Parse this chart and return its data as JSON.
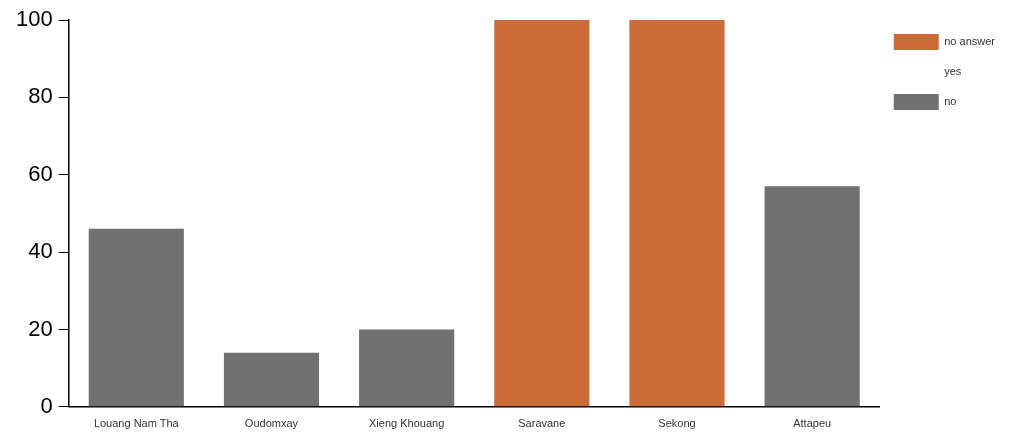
{
  "chart_data": {
    "type": "bar",
    "stacked": true,
    "categories": [
      "Louang Nam Tha",
      "Oudomxay",
      "Xieng Khouang",
      "Saravane",
      "Sekong",
      "Attapeu"
    ],
    "series": [
      {
        "name": "no",
        "color": "#717171",
        "values": [
          46,
          14,
          20,
          null,
          null,
          57
        ]
      },
      {
        "name": "yes",
        "values": [
          null,
          null,
          null,
          null,
          null,
          null
        ]
      },
      {
        "name": "no answer",
        "color": "#cd6b38",
        "values": [
          null,
          null,
          null,
          100,
          100,
          null
        ]
      }
    ],
    "ylim": [
      0,
      100
    ],
    "yticks": [
      0,
      20,
      40,
      60,
      80,
      100
    ],
    "grid": false,
    "legend": "top right"
  }
}
